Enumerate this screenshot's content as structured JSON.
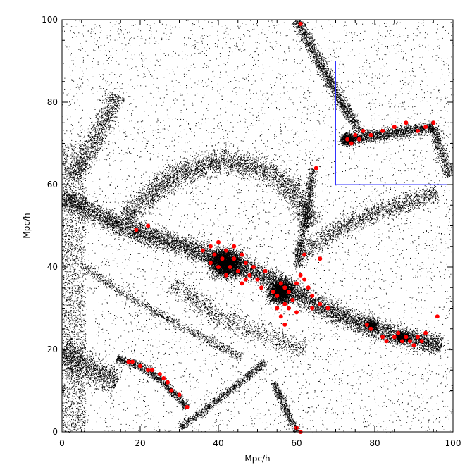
{
  "chart_data": {
    "type": "scatter",
    "title": "",
    "xlabel": "Mpc/h",
    "ylabel": "Mpc/h",
    "xlim": [
      0,
      100
    ],
    "ylim": [
      0,
      100
    ],
    "x_ticks": [
      0,
      20,
      40,
      60,
      80,
      100
    ],
    "y_ticks": [
      0,
      20,
      40,
      60,
      80,
      100
    ],
    "x_tick_labels": [
      "0",
      "20",
      "40",
      "60",
      "80",
      "100"
    ],
    "y_tick_labels": [
      "0",
      "20",
      "40",
      "60",
      "80",
      "100"
    ],
    "grid": false,
    "legend": false,
    "series": [
      {
        "marker_color": "#000000",
        "marker": "point",
        "structures": [
          {
            "kind": "filament",
            "path": [
              [
                0,
                57
              ],
              [
                15,
                50
              ],
              [
                28,
                46
              ],
              [
                38,
                43
              ],
              [
                45,
                40
              ],
              [
                52,
                38
              ],
              [
                58,
                35
              ],
              [
                65,
                31
              ],
              [
                72,
                28
              ],
              [
                80,
                25
              ],
              [
                88,
                23
              ],
              [
                97,
                21
              ]
            ],
            "width": 2.5,
            "density": 0.9
          },
          {
            "kind": "filament",
            "path": [
              [
                60,
                100
              ],
              [
                64,
                93
              ],
              [
                68,
                86
              ],
              [
                72,
                79
              ],
              [
                76,
                73
              ]
            ],
            "width": 1.5,
            "density": 0.6
          },
          {
            "kind": "filament",
            "path": [
              [
                72,
                71
              ],
              [
                80,
                72
              ],
              [
                88,
                73
              ],
              [
                95,
                74
              ]
            ],
            "width": 1.5,
            "density": 0.8
          },
          {
            "kind": "filament",
            "path": [
              [
                95,
                74
              ],
              [
                97,
                68
              ],
              [
                99,
                62
              ]
            ],
            "width": 1.5,
            "density": 0.5
          },
          {
            "kind": "filament",
            "path": [
              [
                2,
                62
              ],
              [
                6,
                66
              ],
              [
                10,
                74
              ],
              [
                14,
                82
              ]
            ],
            "width": 2.5,
            "density": 0.35
          },
          {
            "kind": "filament",
            "path": [
              [
                16,
                52
              ],
              [
                28,
                62
              ],
              [
                40,
                66
              ],
              [
                52,
                64
              ],
              [
                60,
                58
              ],
              [
                64,
                50
              ]
            ],
            "width": 3.0,
            "density": 0.35
          },
          {
            "kind": "filament",
            "path": [
              [
                64,
                64
              ],
              [
                63,
                55
              ],
              [
                61,
                46
              ],
              [
                60,
                40
              ]
            ],
            "width": 1.2,
            "density": 0.5
          },
          {
            "kind": "filament",
            "path": [
              [
                60,
                42
              ],
              [
                68,
                48
              ],
              [
                76,
                52
              ],
              [
                86,
                55
              ],
              [
                96,
                58
              ]
            ],
            "width": 2.5,
            "density": 0.3
          },
          {
            "kind": "filament",
            "path": [
              [
                0,
                20
              ],
              [
                6,
                16
              ],
              [
                14,
                12
              ]
            ],
            "width": 3.5,
            "density": 0.4
          },
          {
            "kind": "filament",
            "path": [
              [
                14,
                18
              ],
              [
                20,
                16
              ],
              [
                26,
                12
              ],
              [
                32,
                6
              ]
            ],
            "width": 1.0,
            "density": 0.85
          },
          {
            "kind": "filament",
            "path": [
              [
                30,
                1
              ],
              [
                36,
                5
              ],
              [
                44,
                11
              ],
              [
                52,
                17
              ]
            ],
            "width": 1.0,
            "density": 0.6
          },
          {
            "kind": "filament",
            "path": [
              [
                54,
                12
              ],
              [
                57,
                6
              ],
              [
                60,
                0
              ]
            ],
            "width": 1.0,
            "density": 0.7
          },
          {
            "kind": "filament",
            "path": [
              [
                6,
                40
              ],
              [
                15,
                34
              ],
              [
                22,
                30
              ],
              [
                30,
                26
              ],
              [
                38,
                22
              ],
              [
                46,
                18
              ]
            ],
            "width": 1.2,
            "density": 0.3
          },
          {
            "kind": "filament",
            "path": [
              [
                28,
                36
              ],
              [
                40,
                28
              ],
              [
                50,
                24
              ],
              [
                62,
                20
              ]
            ],
            "width": 2.5,
            "density": 0.2
          },
          {
            "kind": "cluster",
            "center": [
              42,
              41
            ],
            "radius": 4.0,
            "density": 1.0
          },
          {
            "kind": "cluster",
            "center": [
              56,
              34
            ],
            "radius": 3.2,
            "density": 1.0
          },
          {
            "kind": "cluster",
            "center": [
              73,
              71
            ],
            "radius": 1.8,
            "density": 1.0
          },
          {
            "kind": "cluster",
            "center": [
              79,
              26
            ],
            "radius": 1.5,
            "density": 0.9
          },
          {
            "kind": "cluster",
            "center": [
              87,
              23
            ],
            "radius": 1.8,
            "density": 0.9
          }
        ]
      },
      {
        "marker_color": "#ff0000",
        "marker": "dot",
        "points": [
          [
            61,
            99
          ],
          [
            65,
            64
          ],
          [
            19,
            49
          ],
          [
            22,
            50
          ],
          [
            36,
            44
          ],
          [
            38,
            45
          ],
          [
            40,
            46
          ],
          [
            42,
            44
          ],
          [
            44,
            45
          ],
          [
            46,
            43
          ],
          [
            47,
            41
          ],
          [
            39,
            43
          ],
          [
            41,
            42
          ],
          [
            43,
            40
          ],
          [
            45,
            39
          ],
          [
            47,
            37
          ],
          [
            46,
            36
          ],
          [
            48,
            38
          ],
          [
            49,
            40
          ],
          [
            42,
            38
          ],
          [
            40,
            40
          ],
          [
            38,
            41
          ],
          [
            44,
            42
          ],
          [
            50,
            37
          ],
          [
            52,
            39
          ],
          [
            51,
            35
          ],
          [
            54,
            34
          ],
          [
            55,
            33
          ],
          [
            56,
            36
          ],
          [
            57,
            35
          ],
          [
            58,
            34
          ],
          [
            59,
            32
          ],
          [
            57,
            31
          ],
          [
            55,
            30
          ],
          [
            56,
            28
          ],
          [
            57,
            26
          ],
          [
            60,
            36
          ],
          [
            61,
            38
          ],
          [
            62,
            37
          ],
          [
            63,
            35
          ],
          [
            64,
            33
          ],
          [
            66,
            31
          ],
          [
            68,
            30
          ],
          [
            62,
            43
          ],
          [
            66,
            42
          ],
          [
            58,
            30
          ],
          [
            60,
            29
          ],
          [
            64,
            30
          ],
          [
            75,
            72
          ],
          [
            77,
            73
          ],
          [
            79,
            72
          ],
          [
            82,
            73
          ],
          [
            85,
            74
          ],
          [
            88,
            75
          ],
          [
            91,
            73
          ],
          [
            93,
            74
          ],
          [
            95,
            75
          ],
          [
            73,
            71
          ],
          [
            74,
            70
          ],
          [
            76,
            71
          ],
          [
            78,
            26
          ],
          [
            79,
            25
          ],
          [
            82,
            23
          ],
          [
            83,
            22
          ],
          [
            85,
            23
          ],
          [
            86,
            24
          ],
          [
            87,
            22
          ],
          [
            88,
            23
          ],
          [
            89,
            22
          ],
          [
            90,
            21
          ],
          [
            91,
            23
          ],
          [
            92,
            22
          ],
          [
            93,
            24
          ],
          [
            96,
            28
          ],
          [
            17,
            17
          ],
          [
            18,
            17
          ],
          [
            20,
            16
          ],
          [
            22,
            15
          ],
          [
            23,
            15
          ],
          [
            25,
            14
          ],
          [
            26,
            13
          ],
          [
            27,
            12
          ],
          [
            28,
            10
          ],
          [
            30,
            9
          ],
          [
            32,
            6
          ],
          [
            60,
            1
          ],
          [
            61,
            0
          ]
        ]
      }
    ],
    "inset_box": {
      "x": [
        70,
        100
      ],
      "y": [
        60,
        90
      ],
      "color": "#3333ff"
    }
  }
}
